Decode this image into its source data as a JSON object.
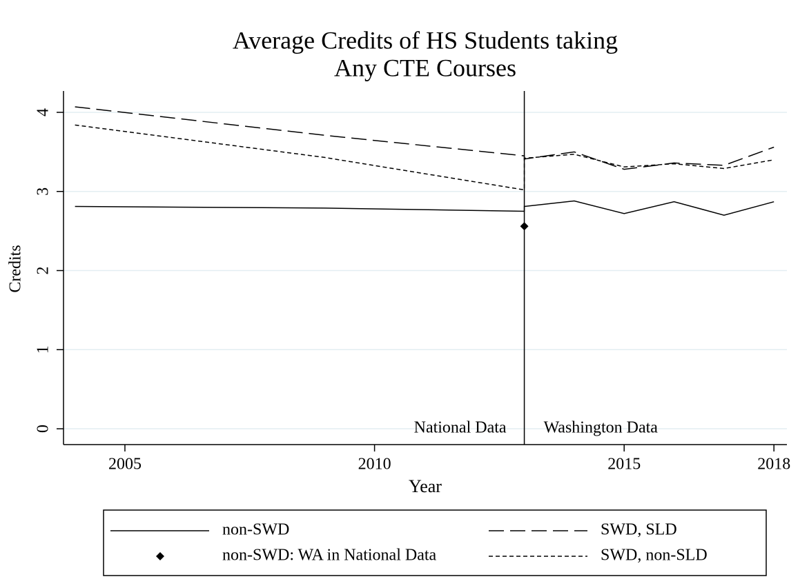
{
  "chart_data": {
    "type": "line",
    "title": [
      "Average Credits of HS Students taking",
      "Any CTE Courses"
    ],
    "x_label": "Year",
    "y_label": "Credits",
    "xlim": [
      2003.77,
      2018.26
    ],
    "ylim": [
      -0.2,
      4.27
    ],
    "xticks": [
      2005,
      2010,
      2015,
      2018
    ],
    "yticks": [
      0,
      1,
      2,
      3,
      4
    ],
    "grid": true,
    "divider_x": 2013,
    "annotations": [
      "National Data",
      "Washington Data"
    ],
    "series": [
      {
        "name": "non-SWD",
        "style": "solid",
        "color": "#000000",
        "x": [
          2004,
          2009,
          2013,
          2013,
          2014,
          2015,
          2016,
          2017,
          2018
        ],
        "values": [
          2.81,
          2.79,
          2.75,
          2.81,
          2.88,
          2.72,
          2.87,
          2.7,
          2.87
        ]
      },
      {
        "name": "non-SWD: WA in National Data",
        "style": "marker",
        "color": "#000000",
        "x": [
          2013
        ],
        "values": [
          2.56
        ]
      },
      {
        "name": "SWD, SLD",
        "style": "dash",
        "color": "#000000",
        "x": [
          2004,
          2009,
          2013,
          2013,
          2014,
          2015,
          2016,
          2017,
          2018
        ],
        "values": [
          4.07,
          3.71,
          3.45,
          3.41,
          3.5,
          3.28,
          3.36,
          3.33,
          3.56
        ]
      },
      {
        "name": "SWD, non-SLD",
        "style": "shortdash",
        "color": "#000000",
        "x": [
          2004,
          2009,
          2013,
          2013,
          2014,
          2015,
          2016,
          2017,
          2018
        ],
        "values": [
          3.84,
          3.43,
          3.02,
          3.42,
          3.47,
          3.31,
          3.35,
          3.29,
          3.4
        ]
      }
    ]
  }
}
